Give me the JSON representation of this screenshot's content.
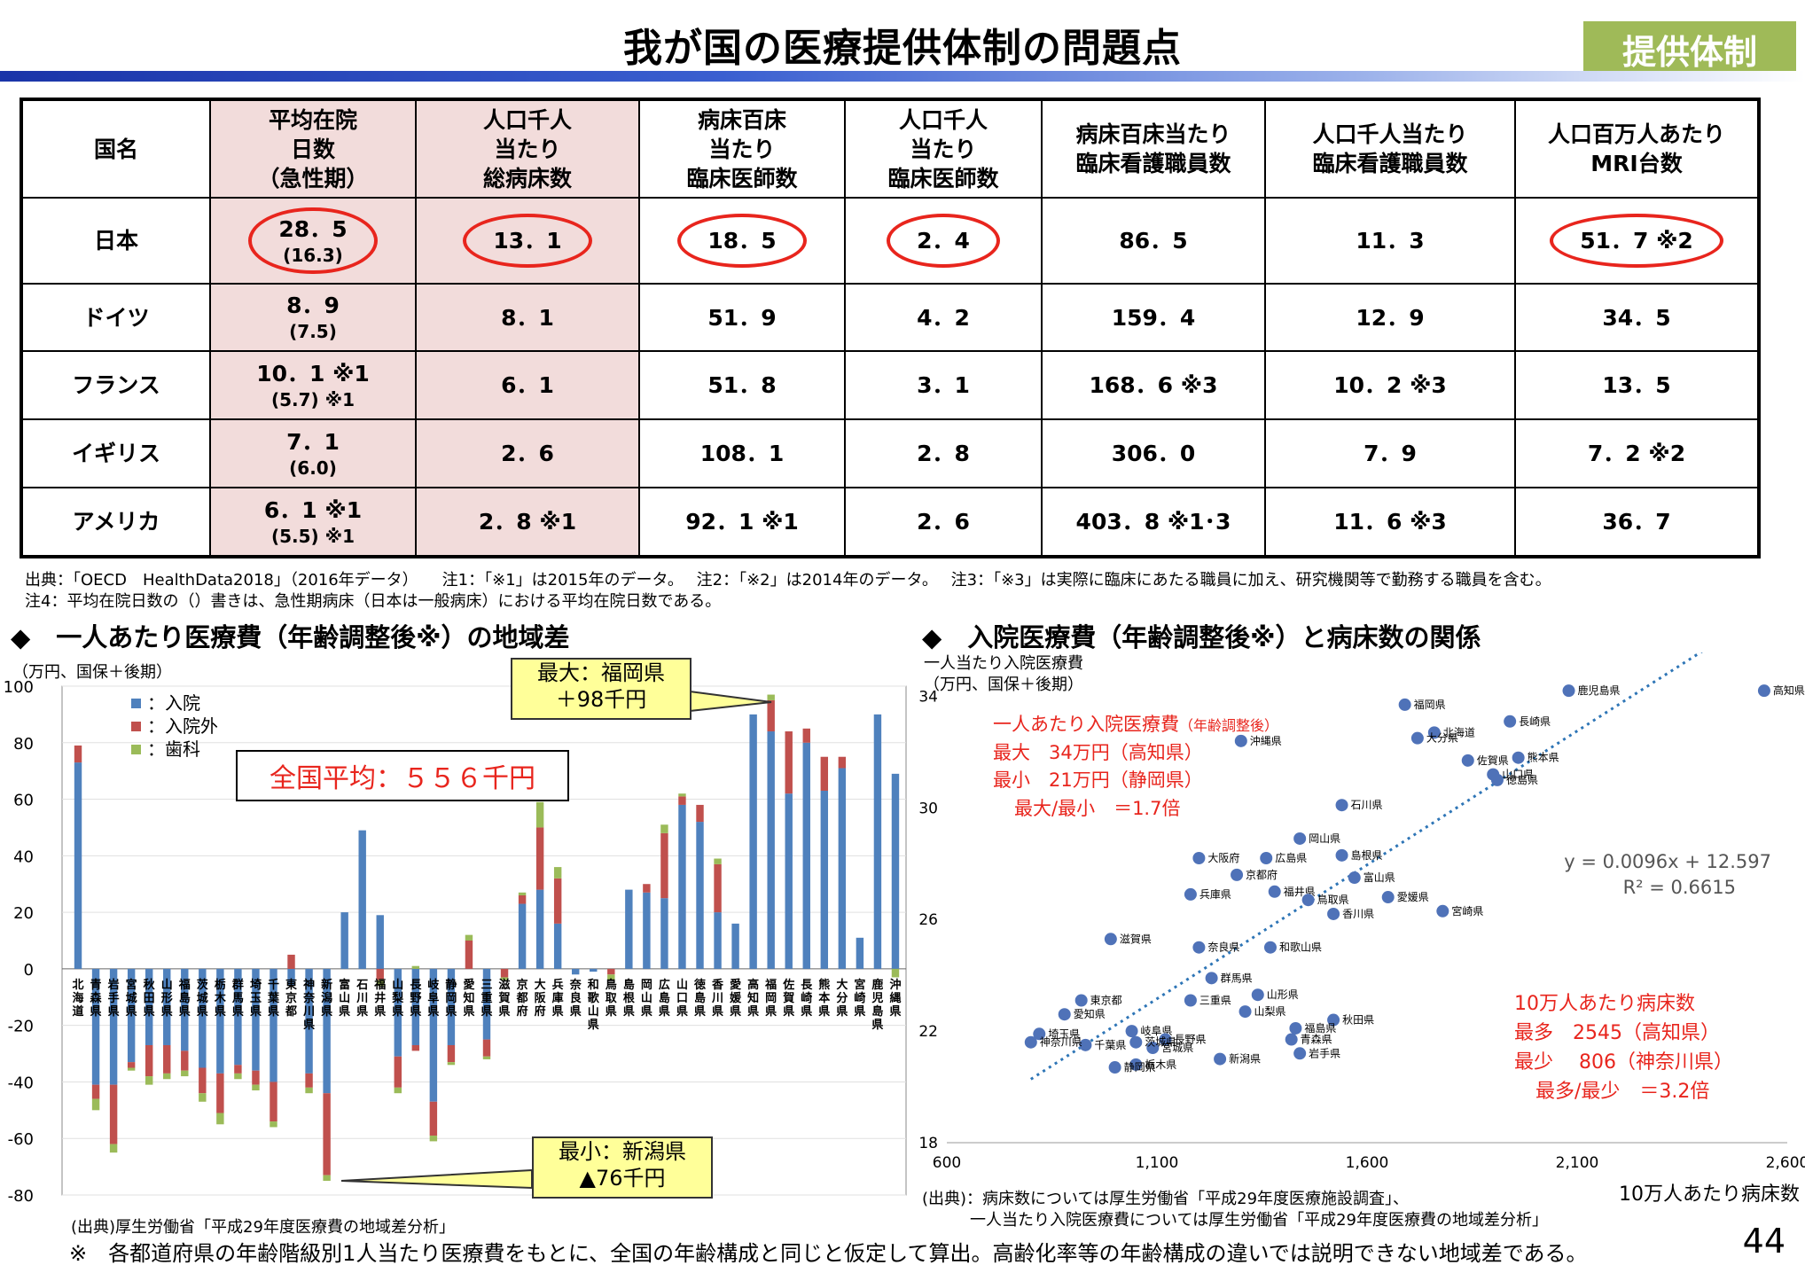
{
  "page": {
    "title": "我が国の医療提供体制の問題点",
    "badge": "提供体制",
    "page_number": "44"
  },
  "table": {
    "headers": [
      "国名",
      "平均在院\n日数\n（急性期）",
      "人口千人\n当たり\n総病床数",
      "病床百床\n当たり\n臨床医師数",
      "人口千人\n当たり\n臨床医師数",
      "病床百床当たり\n臨床看護職員数",
      "人口千人当たり\n臨床看護職員数",
      "人口百万人あたり\nMRI台数"
    ],
    "rows": [
      {
        "country": "日本",
        "stay": "28．5",
        "stay_acute": "(16.3)",
        "beds": "13．1",
        "doc_per_bed": "18．5",
        "doc_per_pop": "2．4",
        "nurse_per_bed": "86．5",
        "nurse_per_pop": "11．3",
        "mri": "51．7 ※2"
      },
      {
        "country": "ドイツ",
        "stay": "8．9",
        "stay_acute": "(7.5)",
        "beds": "8．1",
        "doc_per_bed": "51．9",
        "doc_per_pop": "4．2",
        "nurse_per_bed": "159．4",
        "nurse_per_pop": "12．9",
        "mri": "34．5"
      },
      {
        "country": "フランス",
        "stay": "10．1 ※1",
        "stay_acute": "(5.7) ※1",
        "beds": "6．1",
        "doc_per_bed": "51．8",
        "doc_per_pop": "3．1",
        "nurse_per_bed": "168．6 ※3",
        "nurse_per_pop": "10．2 ※3",
        "mri": "13．5"
      },
      {
        "country": "イギリス",
        "stay": "7．1",
        "stay_acute": "(6.0)",
        "beds": "2．6",
        "doc_per_bed": "108．1",
        "doc_per_pop": "2．8",
        "nurse_per_bed": "306．0",
        "nurse_per_pop": "7．9",
        "mri": "7．2 ※2"
      },
      {
        "country": "アメリカ",
        "stay": "6．1 ※1",
        "stay_acute": "(5.5) ※1",
        "beds": "2．8 ※1",
        "doc_per_bed": "92．1 ※1",
        "doc_per_pop": "2．6",
        "nurse_per_bed": "403．8 ※1･3",
        "nurse_per_pop": "11．6 ※3",
        "mri": "36．7"
      }
    ]
  },
  "notes": {
    "line1": "出典：「OECD　HealthData2018」（2016年データ）　　注1：「※1」は2015年のデータ。　 注2：「※2」は2014年のデータ。　 注3：「※3」は実際に臨床にあたる職員に加え、研究機関等で勤務する職員を含む。",
    "line2": "注4：平均在院日数の（）書きは、急性期病床（日本は一般病床）における平均在院日数である。"
  },
  "left_section": {
    "heading": "◆　一人あたり医療費（年齢調整後※）の地域差",
    "unit": "（万円、国保＋後期）",
    "legend": [
      "：入院",
      "：入院外",
      "：歯科"
    ],
    "avg": "全国平均：５５６千円",
    "max_callout": [
      "最大：福岡県",
      "＋98千円"
    ],
    "min_callout": [
      "最小：新潟県",
      "▲76千円"
    ],
    "source": "(出典)厚生労働省「平成29年度医療費の地域差分析」"
  },
  "right_section": {
    "heading": "◆　入院医療費（年齢調整後※）と病床数の関係",
    "ylabel1": "一人当たり入院医療費",
    "ylabel2": "（万円、国保＋後期）",
    "xlabel": "10万人あたり病床数",
    "ann1": [
      "一人あたり入院医療費",
      "（年齢調整後）",
      "最大　34万円（高知県）",
      "最小　21万円（静岡県）",
      "最大/最小　＝1.7倍"
    ],
    "ann2": [
      "10万人あたり病床数",
      "最多　2545（高知県）",
      "最少　 806（神奈川県）",
      "最多/最少　＝3.2倍"
    ],
    "eq": "y = 0.0096x + 12.597",
    "r2": "R² = 0.6615",
    "source1": "(出典)：病床数については厚生労働省「平成29年度医療施設調査」、",
    "source2": "一人当たり入院医療費については厚生労働省「平成29年度医療費の地域差分析」"
  },
  "footnote": "※　各都道府県の年齢階級別1人当たり医療費をもとに、全国の年齢構成と同じと仮定して算出。高齢化率等の年齢構成の違いでは説明できない地域差である。",
  "colors": {
    "inpatient": "#4f81bd",
    "outpatient": "#c0504d",
    "dental": "#9bbb59",
    "accent": "#e8251d",
    "badge": "#9fba58"
  },
  "chart_data": [
    {
      "type": "bar",
      "stacked": true,
      "title": "一人あたり医療費（年齢調整後※）の地域差",
      "ylabel": "（万円、国保＋後期）",
      "ylim": [
        -80,
        100
      ],
      "yticks": [
        -80,
        -60,
        -40,
        -20,
        0,
        20,
        40,
        60,
        80,
        100
      ],
      "categories": [
        "北海道",
        "青森県",
        "岩手県",
        "宮城県",
        "秋田県",
        "山形県",
        "福島県",
        "茨城県",
        "栃木県",
        "群馬県",
        "埼玉県",
        "千葉県",
        "東京都",
        "神奈川県",
        "新潟県",
        "富山県",
        "石川県",
        "福井県",
        "山梨県",
        "長野県",
        "岐阜県",
        "静岡県",
        "愛知県",
        "三重県",
        "滋賀県",
        "京都府",
        "大阪府",
        "兵庫県",
        "奈良県",
        "和歌山県",
        "鳥取県",
        "島根県",
        "岡山県",
        "広島県",
        "山口県",
        "徳島県",
        "香川県",
        "愛媛県",
        "高知県",
        "福岡県",
        "佐賀県",
        "長崎県",
        "熊本県",
        "大分県",
        "宮崎県",
        "鹿児島県",
        "沖縄県"
      ],
      "series": [
        {
          "name": "入院",
          "values": [
            73,
            -41,
            -41,
            -33,
            -27,
            -27,
            -29,
            -35,
            -37,
            -34,
            -36,
            -40,
            -6,
            -37,
            -44,
            20,
            49,
            19,
            -31,
            -27,
            -47,
            -27,
            0,
            -25,
            0,
            23,
            28,
            16,
            -2,
            -1,
            0,
            28,
            27,
            25,
            58,
            52,
            20,
            16,
            90,
            84,
            62,
            80,
            63,
            71,
            11,
            90,
            69
          ]
        },
        {
          "name": "入院外",
          "values": [
            6,
            -5,
            -21,
            -2,
            -11,
            -10,
            -7,
            -9,
            -14,
            -3,
            -5,
            -14,
            5,
            -5,
            -29,
            0,
            0,
            -4,
            -11,
            -2,
            -12,
            -6,
            10,
            -6,
            -3,
            3,
            22,
            16,
            0,
            0,
            -2,
            0,
            3,
            23,
            3,
            6,
            17,
            0,
            0,
            11,
            22,
            5,
            12,
            4,
            0,
            0,
            0
          ]
        },
        {
          "name": "歯科",
          "values": [
            0,
            -4,
            -3,
            -1,
            -3,
            -2,
            -2,
            -3,
            -4,
            -2,
            -2,
            -2,
            0,
            -2,
            -2,
            0,
            0,
            -2,
            -2,
            1,
            -2,
            -1,
            2,
            -1,
            -1,
            1,
            9,
            4,
            0,
            0,
            -2,
            0,
            0,
            3,
            1,
            0,
            2,
            0,
            0,
            2,
            0,
            0,
            0,
            0,
            0,
            0,
            -3
          ]
        }
      ]
    },
    {
      "type": "scatter",
      "title": "入院医療費（年齢調整後※）と病床数の関係",
      "xlabel": "10万人あたり病床数",
      "ylabel": "一人当たり入院医療費（万円、国保＋後期）",
      "xlim": [
        600,
        2600
      ],
      "ylim": [
        18,
        35
      ],
      "xticks": [
        600,
        1100,
        1600,
        2100,
        2600
      ],
      "yticks": [
        18,
        22,
        26,
        30,
        34
      ],
      "trendline": {
        "slope": 0.0096,
        "intercept": 12.597,
        "r2": 0.6615
      },
      "points": [
        {
          "label": "高知県",
          "x": 2545,
          "y": 34.2
        },
        {
          "label": "鹿児島県",
          "x": 2080,
          "y": 34.2
        },
        {
          "label": "福岡県",
          "x": 1690,
          "y": 33.7
        },
        {
          "label": "北海道",
          "x": 1760,
          "y": 32.7
        },
        {
          "label": "長崎県",
          "x": 1940,
          "y": 33.1
        },
        {
          "label": "沖縄県",
          "x": 1300,
          "y": 32.4
        },
        {
          "label": "大分県",
          "x": 1720,
          "y": 32.5
        },
        {
          "label": "熊本県",
          "x": 1960,
          "y": 31.8
        },
        {
          "label": "佐賀県",
          "x": 1840,
          "y": 31.7
        },
        {
          "label": "山口県",
          "x": 1900,
          "y": 31.2
        },
        {
          "label": "徳島県",
          "x": 1910,
          "y": 31.0
        },
        {
          "label": "石川県",
          "x": 1540,
          "y": 30.1
        },
        {
          "label": "岡山県",
          "x": 1440,
          "y": 28.9
        },
        {
          "label": "島根県",
          "x": 1540,
          "y": 28.3
        },
        {
          "label": "広島県",
          "x": 1360,
          "y": 28.2
        },
        {
          "label": "大阪府",
          "x": 1200,
          "y": 28.2
        },
        {
          "label": "富山県",
          "x": 1570,
          "y": 27.5
        },
        {
          "label": "京都府",
          "x": 1290,
          "y": 27.6
        },
        {
          "label": "宮崎県",
          "x": 1780,
          "y": 26.3
        },
        {
          "label": "兵庫県",
          "x": 1180,
          "y": 26.9
        },
        {
          "label": "福井県",
          "x": 1380,
          "y": 27.0
        },
        {
          "label": "愛媛県",
          "x": 1650,
          "y": 26.8
        },
        {
          "label": "鳥取県",
          "x": 1460,
          "y": 26.7
        },
        {
          "label": "香川県",
          "x": 1520,
          "y": 26.2
        },
        {
          "label": "奈良県",
          "x": 1200,
          "y": 25.0
        },
        {
          "label": "和歌山県",
          "x": 1370,
          "y": 25.0
        },
        {
          "label": "滋賀県",
          "x": 990,
          "y": 25.3
        },
        {
          "label": "群馬県",
          "x": 1230,
          "y": 23.9
        },
        {
          "label": "山形県",
          "x": 1340,
          "y": 23.3
        },
        {
          "label": "三重県",
          "x": 1180,
          "y": 23.1
        },
        {
          "label": "山梨県",
          "x": 1310,
          "y": 22.7
        },
        {
          "label": "東京都",
          "x": 920,
          "y": 23.1
        },
        {
          "label": "愛知県",
          "x": 880,
          "y": 22.6
        },
        {
          "label": "秋田県",
          "x": 1520,
          "y": 22.4
        },
        {
          "label": "福島県",
          "x": 1430,
          "y": 22.1
        },
        {
          "label": "埼玉県",
          "x": 820,
          "y": 21.9
        },
        {
          "label": "岐阜県",
          "x": 1040,
          "y": 22.0
        },
        {
          "label": "長野県",
          "x": 1120,
          "y": 21.7
        },
        {
          "label": "宮城県",
          "x": 1090,
          "y": 21.4
        },
        {
          "label": "茨城県",
          "x": 1050,
          "y": 21.6
        },
        {
          "label": "青森県",
          "x": 1420,
          "y": 21.7
        },
        {
          "label": "千葉県",
          "x": 930,
          "y": 21.5
        },
        {
          "label": "神奈川県",
          "x": 800,
          "y": 21.6
        },
        {
          "label": "栃木県",
          "x": 1050,
          "y": 20.8
        },
        {
          "label": "新潟県",
          "x": 1250,
          "y": 21.0
        },
        {
          "label": "岩手県",
          "x": 1440,
          "y": 21.2
        },
        {
          "label": "静岡県",
          "x": 1000,
          "y": 20.7
        }
      ]
    }
  ]
}
